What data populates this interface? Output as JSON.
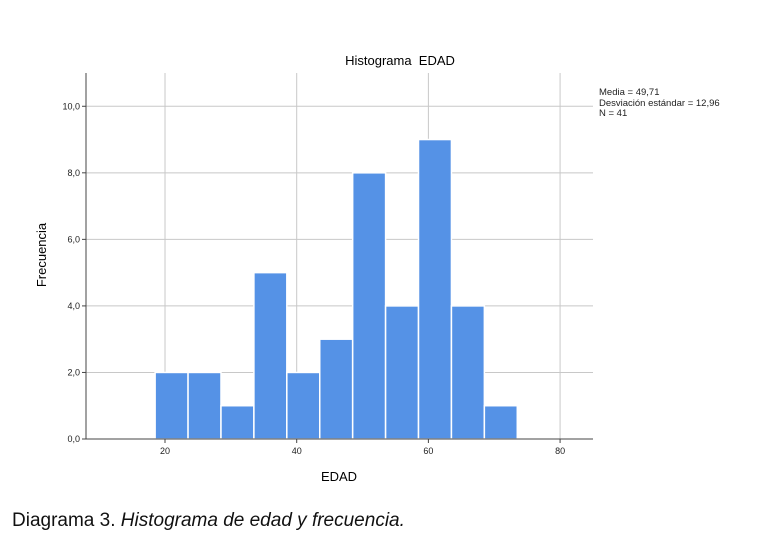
{
  "chart_data": {
    "type": "bar",
    "title": "Histograma  EDAD",
    "xlabel": "EDAD",
    "ylabel": "Frecuencia",
    "bin_edges": [
      18.5,
      23.5,
      28.5,
      33.5,
      38.5,
      43.5,
      48.5,
      53.5,
      58.5,
      63.5,
      68.5,
      73.5
    ],
    "values": [
      2,
      2,
      1,
      5,
      2,
      3,
      8,
      4,
      9,
      4,
      1
    ],
    "xlim": [
      8,
      85
    ],
    "ylim": [
      0,
      11
    ],
    "x_ticks": [
      "20",
      "40",
      "60",
      "80"
    ],
    "y_ticks": [
      "0,0",
      "2,0",
      "4,0",
      "6,0",
      "8,0",
      "10,0"
    ],
    "grid": true,
    "bar_color": "#5592e6",
    "stats": {
      "mean": "Media = 49,71",
      "std": "Desviación estándar = 12,96",
      "n": "N = 41"
    }
  },
  "caption": {
    "prefix": "Diagrama 3. ",
    "text": "Histograma de edad y frecuencia."
  }
}
